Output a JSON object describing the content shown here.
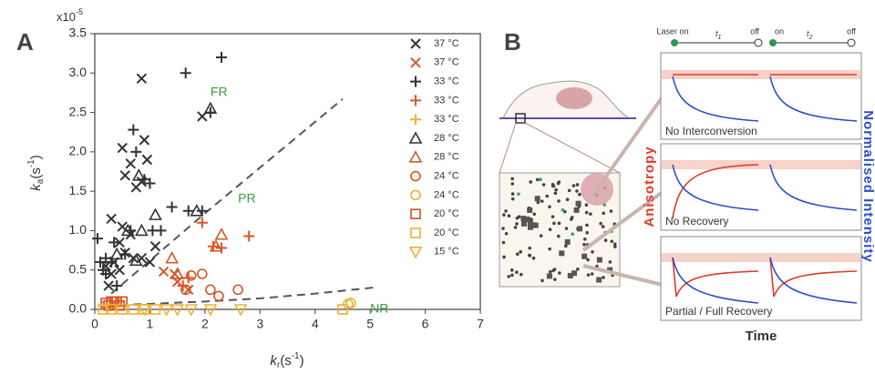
{
  "chart_data": {
    "type": "scatter",
    "panel_label": "A",
    "xlabel": {
      "main": "k",
      "sub": "r",
      "unit": "(s",
      "sup": "-1",
      "close": ")"
    },
    "ylabel": {
      "main": "k",
      "sub": "a",
      "unit": "(s",
      "sup": "-1",
      "close": ")"
    },
    "y_multiplier": {
      "base": "x10",
      "exp": "-5"
    },
    "xlim": [
      0,
      7
    ],
    "xticks": [
      0,
      1,
      2,
      3,
      4,
      5,
      6,
      7
    ],
    "ylim": [
      0,
      3.5
    ],
    "yticks": [
      {
        "value": 0,
        "label": "0.0"
      },
      0.5,
      {
        "value": 1,
        "label": "1.0"
      },
      1.5,
      {
        "value": 2,
        "label": "2.0"
      },
      2.5,
      {
        "value": 3,
        "label": "3.0"
      },
      3.5
    ],
    "annotations": [
      {
        "text": "FR",
        "x": 2.1,
        "y": 2.75
      },
      {
        "text": "PR",
        "x": 2.6,
        "y": 1.4
      },
      {
        "text": "NR",
        "x": 5.0,
        "y": 0.0
      }
    ],
    "annotation_color": "#3a9a3a",
    "boundaries": [
      {
        "x": [
          0.3,
          1.0,
          2.0,
          3.0,
          4.5
        ],
        "y": [
          0.2,
          0.62,
          1.22,
          1.8,
          2.67
        ],
        "color": "#555555"
      },
      {
        "x": [
          0.2,
          1.0,
          2.0,
          3.0,
          4.0,
          5.1
        ],
        "y": [
          0.05,
          0.07,
          0.1,
          0.14,
          0.2,
          0.28
        ],
        "color": "#555555"
      }
    ],
    "series": [
      {
        "name": "37 °C",
        "marker": "x",
        "color": "#333333",
        "x": [
          0.2,
          0.25,
          0.3,
          0.35,
          0.3,
          0.45,
          0.5,
          0.5,
          0.55,
          0.65,
          0.75,
          0.85,
          0.9,
          0.95,
          0.85,
          0.65,
          0.7,
          1.1,
          0.55,
          0.85,
          1.95,
          0.45,
          1.0
        ],
        "y": [
          0.55,
          0.3,
          0.45,
          0.6,
          1.15,
          0.85,
          1.05,
          2.05,
          1.7,
          1.85,
          1.55,
          2.93,
          2.15,
          1.9,
          0.65,
          0.95,
          0.65,
          0.8,
          0.72,
          1.62,
          2.45,
          0.5,
          0.6
        ]
      },
      {
        "name": "37 °C",
        "marker": "x",
        "color": "#d4572a",
        "x": [
          1.25,
          1.45,
          1.5,
          1.7
        ],
        "y": [
          0.48,
          0.45,
          0.35,
          0.25
        ]
      },
      {
        "name": "33 °C",
        "marker": "plus",
        "color": "#333333",
        "x": [
          0.05,
          0.1,
          0.15,
          0.2,
          0.3,
          0.2,
          0.35,
          0.55,
          0.65,
          0.7,
          0.75,
          0.9,
          1.0,
          1.05,
          1.2,
          1.4,
          1.65,
          1.7,
          2.1,
          2.3,
          1.95,
          0.4
        ],
        "y": [
          0.9,
          0.6,
          0.5,
          0.45,
          0.6,
          0.65,
          0.85,
          0.7,
          1.0,
          2.28,
          2.0,
          1.65,
          1.6,
          1.0,
          1.0,
          1.3,
          3.0,
          1.25,
          2.5,
          3.2,
          1.25,
          0.3
        ]
      },
      {
        "name": "33 °C",
        "marker": "plus",
        "color": "#e0542a",
        "x": [
          1.95,
          2.15,
          2.3,
          2.8,
          1.6,
          1.7
        ],
        "y": [
          1.1,
          0.8,
          0.78,
          0.93,
          0.3,
          0.4
        ]
      },
      {
        "name": "33 °C",
        "marker": "plus",
        "color": "#f0b030",
        "x": [
          0.3,
          0.45
        ],
        "y": [
          0.05,
          0.1
        ]
      },
      {
        "name": "28 °C",
        "marker": "triangle",
        "color": "#333333",
        "x": [
          0.4,
          0.8,
          0.75,
          0.85,
          0.6,
          1.1,
          1.85,
          2.1
        ],
        "y": [
          0.7,
          1.7,
          0.62,
          1.0,
          1.0,
          1.2,
          1.25,
          2.55
        ]
      },
      {
        "name": "28 °C",
        "marker": "triangle",
        "color": "#d4572a",
        "x": [
          1.4,
          1.5,
          2.2,
          2.3
        ],
        "y": [
          0.65,
          0.45,
          0.8,
          0.95
        ]
      },
      {
        "name": "24 °C",
        "marker": "circle",
        "color": "#d4572a",
        "x": [
          1.75,
          1.95,
          2.1,
          2.25,
          2.6,
          1.65,
          0.35
        ],
        "y": [
          0.43,
          0.45,
          0.25,
          0.17,
          0.25,
          0.25,
          0.1
        ]
      },
      {
        "name": "24 °C",
        "marker": "circle",
        "color": "#f0b030",
        "x": [
          4.6,
          4.65,
          0.2
        ],
        "y": [
          0.07,
          0.08,
          0.05
        ]
      },
      {
        "name": "20 °C",
        "marker": "square",
        "color": "#d4502a",
        "x": [
          0.2,
          0.3,
          0.4,
          0.5,
          0.25,
          0.45
        ],
        "y": [
          0.08,
          0.1,
          0.1,
          0.1,
          0.05,
          0.05
        ]
      },
      {
        "name": "20 °C",
        "marker": "square",
        "color": "#f0b030",
        "x": [
          0.15,
          0.3,
          0.5,
          0.7,
          0.9,
          1.1,
          4.5
        ],
        "y": [
          0,
          0,
          0,
          0,
          0,
          0,
          0
        ]
      },
      {
        "name": "15 °C",
        "marker": "triangle-down",
        "color": "#f0b030",
        "x": [
          1.3,
          1.5,
          1.75,
          2.1,
          2.65,
          0.9
        ],
        "y": [
          0,
          0,
          0,
          0,
          0,
          0
        ]
      }
    ]
  },
  "panel_b": {
    "panel_label": "B",
    "timeline": {
      "laser_on": "Laser on",
      "t1": {
        "main": "t",
        "sub": "1"
      },
      "off1": "off",
      "on2": "on",
      "t2": {
        "main": "t",
        "sub": "2"
      },
      "off2": "off"
    },
    "subpanels": [
      "No Interconversion",
      "No Recovery",
      "Partial / Full Recovery"
    ],
    "left_axis": "Anisotropy",
    "right_axis": "Normalised Intensity",
    "bottom_axis": "Time"
  }
}
